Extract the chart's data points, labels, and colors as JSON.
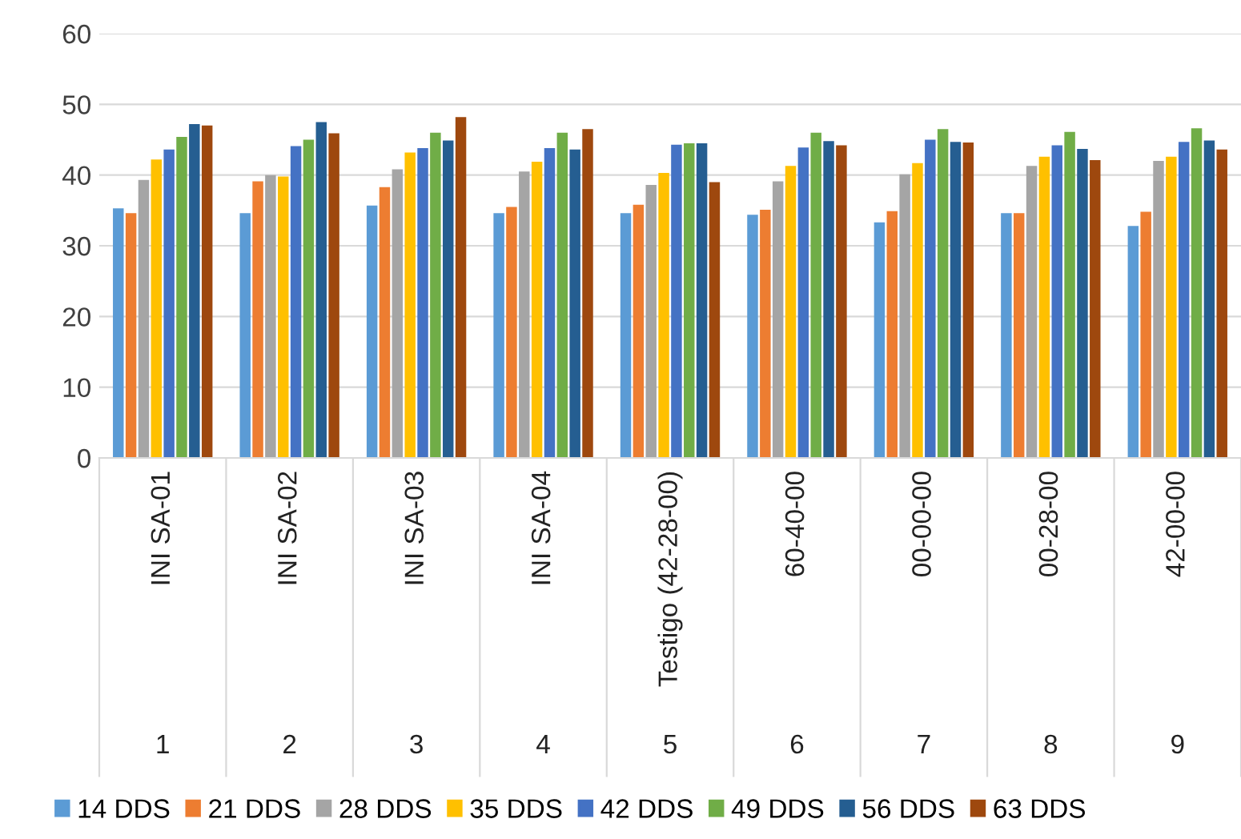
{
  "chart_data": {
    "type": "bar",
    "categories": [
      "INI SA-01",
      "INI SA-02",
      "INI SA-03",
      "INI SA-04",
      "Testigo (42-28-00)",
      "60-40-00",
      "00-00-00",
      "00-28-00",
      "42-00-00"
    ],
    "annotations": [
      "1",
      "2",
      "3",
      "4",
      "5",
      "6",
      "7",
      "8",
      "9"
    ],
    "series": [
      {
        "name": "14 DDS",
        "color": "#5b9bd5",
        "values": [
          35.3,
          34.6,
          35.7,
          34.6,
          34.6,
          34.4,
          33.3,
          34.6,
          32.8
        ]
      },
      {
        "name": "21 DDS",
        "color": "#ed7d31",
        "values": [
          34.6,
          39.1,
          38.3,
          35.5,
          35.8,
          35.1,
          34.9,
          34.6,
          34.8
        ]
      },
      {
        "name": "28 DDS",
        "color": "#a5a5a5",
        "values": [
          39.3,
          40.0,
          40.8,
          40.5,
          38.6,
          39.1,
          40.1,
          41.3,
          42.0
        ]
      },
      {
        "name": "35 DDS",
        "color": "#ffc000",
        "values": [
          42.2,
          39.8,
          43.2,
          41.9,
          40.3,
          41.3,
          41.7,
          42.6,
          42.6
        ]
      },
      {
        "name": "42 DDS",
        "color": "#4472c4",
        "values": [
          43.6,
          44.1,
          43.8,
          43.8,
          44.3,
          43.9,
          45.0,
          44.2,
          44.7
        ]
      },
      {
        "name": "49 DDS",
        "color": "#70ad47",
        "values": [
          45.4,
          45.0,
          46.0,
          46.0,
          44.5,
          46.0,
          46.5,
          46.1,
          46.6
        ]
      },
      {
        "name": "56 DDS",
        "color": "#255e91",
        "values": [
          47.2,
          47.5,
          44.9,
          43.6,
          44.5,
          44.8,
          44.7,
          43.7,
          44.9
        ]
      },
      {
        "name": "63 DDS",
        "color": "#9e480e",
        "values": [
          47.0,
          45.9,
          48.2,
          46.5,
          39.0,
          44.2,
          44.6,
          42.1,
          43.6
        ]
      }
    ],
    "ylim": [
      0,
      60
    ],
    "yticks": [
      0,
      10,
      20,
      30,
      40,
      50,
      60
    ],
    "grid": "y",
    "legend": "bottom"
  }
}
